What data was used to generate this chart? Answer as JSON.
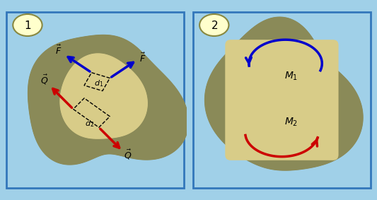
{
  "bg_color": "#a0d0e8",
  "panel_border_color": "#3377bb",
  "blob_outer_color": "#8a8a58",
  "blob_inner_color": "#d8cc88",
  "label_bg": "#ffffcc",
  "label_border": "#888840",
  "blue_color": "#0000cc",
  "red_color": "#cc0000"
}
